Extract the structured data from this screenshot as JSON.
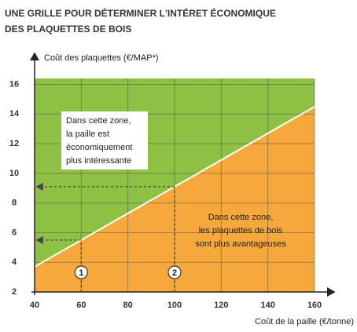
{
  "chart_data": {
    "type": "line",
    "title": [
      "UNE GRILLE POUR DÉTERMINER L'INTÉRET ÉCONOMIQUE",
      "DES PLAQUETTES DE BOIS"
    ],
    "y_label": "Coût des plaquettes (€/MAP*)",
    "x_label": "Coût de la paille (€/tonne)",
    "xlim": [
      40,
      160
    ],
    "ylim": [
      2,
      16.4
    ],
    "xticks": [
      40,
      60,
      80,
      100,
      120,
      140,
      160
    ],
    "yticks": [
      2,
      4,
      6,
      8,
      10,
      12,
      14,
      16
    ],
    "grid": true,
    "series": [
      {
        "x": [
          40,
          160
        ],
        "values": [
          3.7,
          14.5
        ],
        "color": "#ffffff"
      }
    ],
    "above_color": "#8dc043",
    "below_color": "#f6a83a",
    "annotations": [
      {
        "lines": [
          "Dans cette zone,",
          "la paille est",
          "économiquement",
          "plus intéressante"
        ]
      },
      {
        "lines": [
          "Dans cette zone,",
          "les plaquettes de bois",
          "sont plus avantageuses"
        ]
      }
    ],
    "readings": [
      {
        "label": "1",
        "x": 60,
        "y": 5.5
      },
      {
        "label": "2",
        "x": 100,
        "y": 9.1
      }
    ]
  }
}
